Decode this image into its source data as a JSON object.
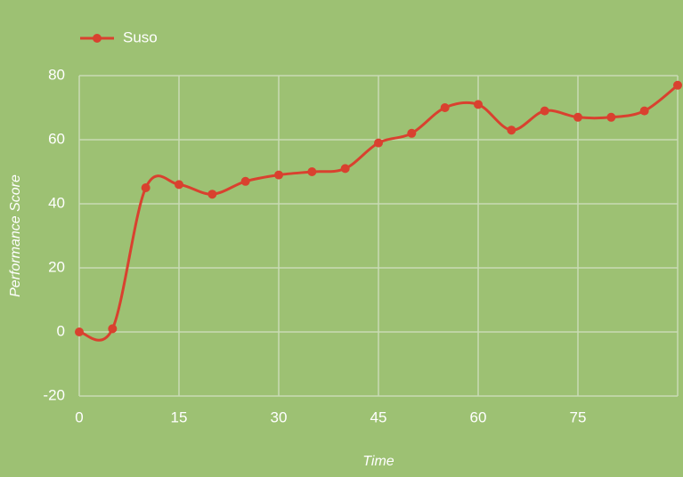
{
  "chart_data": {
    "type": "line",
    "x_label": "Time",
    "y_label": "Performance Score",
    "x": [
      0,
      5,
      10,
      15,
      20,
      25,
      30,
      35,
      40,
      45,
      50,
      55,
      60,
      65,
      70,
      75,
      80,
      85,
      90
    ],
    "series": [
      {
        "name": "Suso",
        "color": "#d9412f",
        "values": [
          0,
          1,
          45,
          46,
          43,
          47,
          49,
          50,
          51,
          59,
          62,
          70,
          71,
          63,
          69,
          67,
          67,
          69,
          77
        ]
      }
    ],
    "xlim": [
      0,
      90
    ],
    "xticks": [
      0,
      15,
      30,
      45,
      60,
      75
    ],
    "ylim": [
      -20,
      80
    ],
    "yticks": [
      -20,
      0,
      20,
      40,
      60,
      80
    ],
    "grid": true,
    "smooth": true,
    "legend": "top-left"
  }
}
